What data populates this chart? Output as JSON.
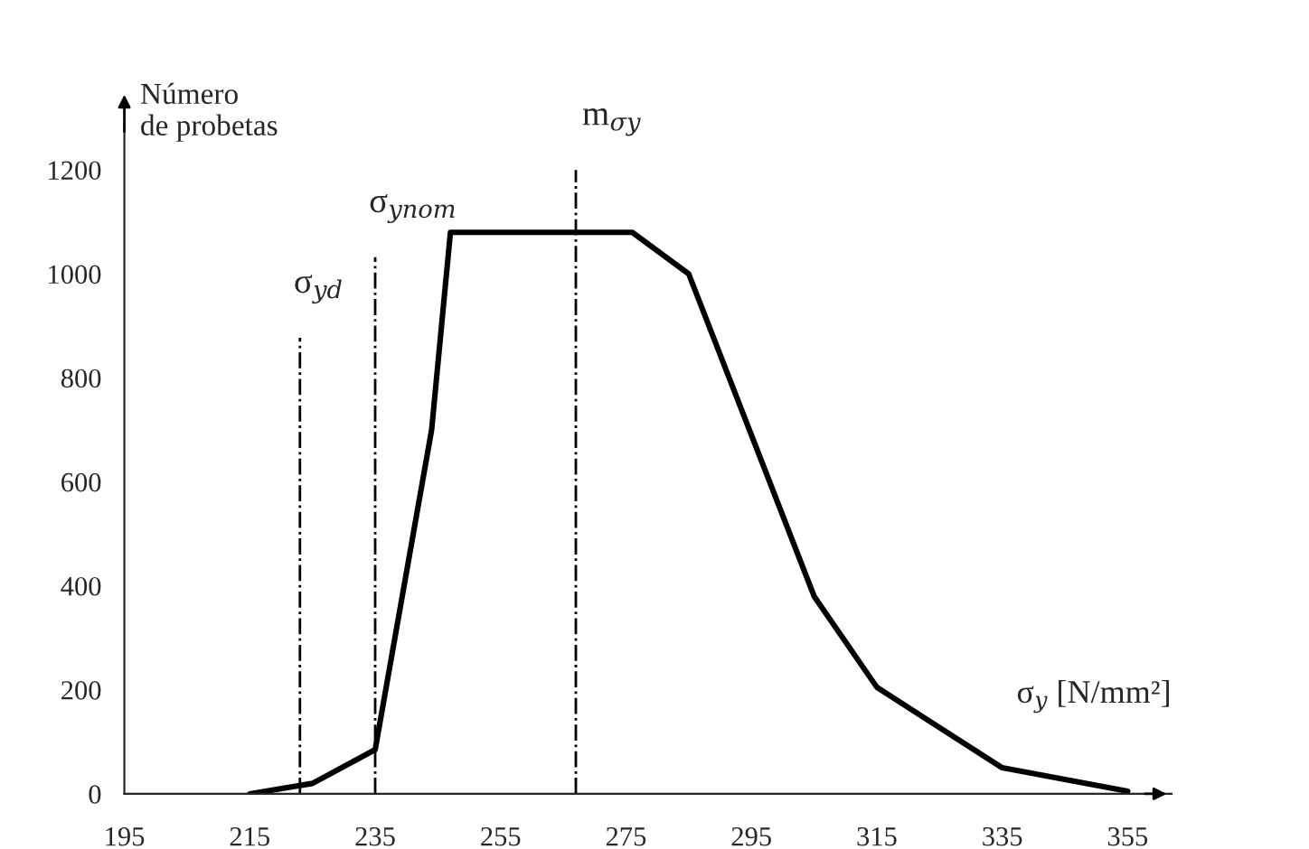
{
  "chart_data": {
    "type": "line",
    "xlabel": "σ$_{y}$ [N/mm²]",
    "ylabel": "Número de probetas",
    "x": [
      215,
      225,
      235,
      244,
      247,
      276,
      285,
      305,
      315,
      335,
      355
    ],
    "series": [
      {
        "color": "#000000",
        "values": [
          0,
          20,
          85,
          700,
          1080,
          1080,
          1000,
          380,
          205,
          50,
          5
        ]
      }
    ],
    "xlim": [
      195,
      362
    ],
    "ylim": [
      0,
      1290
    ],
    "xticks": [
      195,
      215,
      235,
      255,
      275,
      295,
      315,
      335,
      355
    ],
    "yticks": [
      0,
      200,
      400,
      600,
      800,
      1000,
      1200
    ],
    "ref_lines": [
      {
        "axis": "x",
        "value": 223,
        "label": "σ$_{yd}$",
        "line_style": "dashdot",
        "color": "#000000"
      },
      {
        "axis": "x",
        "value": 235,
        "label": "σ$_{ynom}$",
        "line_style": "dashdot",
        "color": "#000000"
      },
      {
        "axis": "x",
        "value": 267,
        "label": "m$_{σy}$",
        "line_style": "dashdot",
        "color": "#000000"
      }
    ],
    "grid": false,
    "marker": "none",
    "line_style": "solid"
  }
}
